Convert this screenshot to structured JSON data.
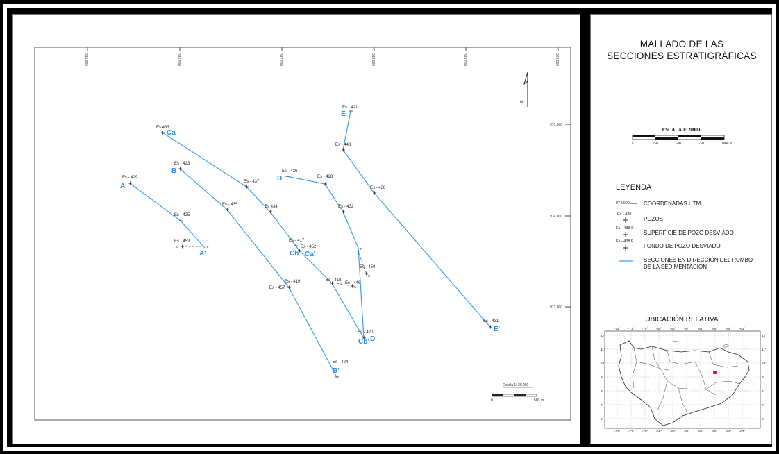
{
  "map": {
    "top_coords": [
      "315.000",
      "316.000",
      "317.000",
      "318.000",
      "319.000",
      "320.000"
    ],
    "right_coords": [
      "975.000",
      "974.000",
      "973.000"
    ],
    "north_label": "N",
    "colors": {
      "section_line": "#3aa0e8",
      "section_label": "#2f8fe0",
      "well_text": "#222"
    },
    "wells": [
      {
        "id": "w433",
        "label": "Es 433"
      },
      {
        "id": "w423",
        "label": "Es - 423"
      },
      {
        "id": "w429",
        "label": "Es - 429"
      },
      {
        "id": "w437",
        "label": "Es - 437"
      },
      {
        "id": "w435",
        "label": "Es - 435"
      },
      {
        "id": "w434",
        "label": "Es 434"
      },
      {
        "id": "w425",
        "label": "Es - 425"
      },
      {
        "id": "w453",
        "label": "Es - 453"
      },
      {
        "id": "w436",
        "label": "Es - 436"
      },
      {
        "id": "w428",
        "label": "Es - 428"
      },
      {
        "id": "w421",
        "label": "Es - 421"
      },
      {
        "id": "w448",
        "label": "Es - 448"
      },
      {
        "id": "w438",
        "label": "Es - 438"
      },
      {
        "id": "w432",
        "label": "Es - 432"
      },
      {
        "id": "w417",
        "label": "Es - 417"
      },
      {
        "id": "w452",
        "label": "Es - 452"
      },
      {
        "id": "w450",
        "label": "Es - 450"
      },
      {
        "id": "w418",
        "label": "Es - 418"
      },
      {
        "id": "w446",
        "label": "Es - 446"
      },
      {
        "id": "w419",
        "label": "Es - 419"
      },
      {
        "id": "w457",
        "label": "Es - 457"
      },
      {
        "id": "w420",
        "label": "Es - 420"
      },
      {
        "id": "w424",
        "label": "Es - 424"
      },
      {
        "id": "w431",
        "label": "Es - 431"
      }
    ],
    "section_labels": {
      "A": "A",
      "A_prime": "A'",
      "B": "B",
      "B_prime": "B'",
      "Ca": "Ca",
      "Ca_prime": "Ca'",
      "Cb": "Cb",
      "Cb_prime": "Cb'",
      "D": "D",
      "D_prime": "D'",
      "E": "E",
      "E_prime": "E'"
    },
    "dev_marks": {
      "s": "S",
      "f": "F"
    },
    "scale_bar": {
      "title": "Escala 1: 20.000",
      "start": "0",
      "end": "500 m"
    }
  },
  "side": {
    "title_line1": "MALLADO DE LAS",
    "title_line2": "SECCIONES ESTRATIGRÁFICAS",
    "scale": {
      "title": "ESCALA  1: 20000",
      "ticks": [
        "0",
        "250",
        "500",
        "750",
        "1000 m"
      ]
    },
    "legend": {
      "title": "LEYENDA",
      "utm_sample": "974.000",
      "utm_label": "COORDENADAS UTM",
      "well_sample": "Es - 438",
      "well_label": "POZOS",
      "surface_sample": "Es - 438 S",
      "surface_label": "SUPERFICIE DE POZO DESVIADO",
      "bottom_sample": "Es - 438 F",
      "bottom_label": "FONDO DE POZO DESVIADO",
      "section_label_1": "SECCIONES EN DIRECCIÓN DEL RUMBO",
      "section_label_2": "DE LA SEDIMENTACIÓN"
    },
    "location": {
      "title": "UBICACIÓN RELATIVA",
      "lon_labels": [
        "-72°",
        "-71°",
        "-70°",
        "-69°",
        "-68°",
        "-67°",
        "-66°",
        "-65°",
        "-64°",
        "-63°"
      ],
      "lat_labels": [
        "12°",
        "11°",
        "10°",
        "9°",
        "8°",
        "7°",
        "6°"
      ],
      "marker_color": "#e02020"
    }
  }
}
